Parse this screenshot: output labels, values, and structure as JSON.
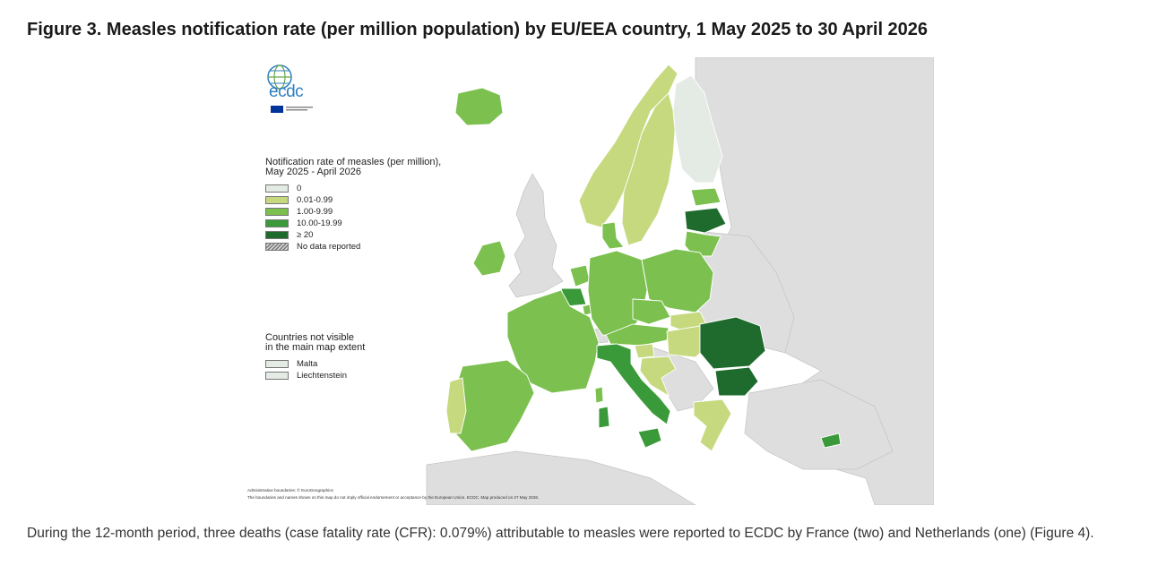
{
  "figure": {
    "title": "Figure 3. Measles notification rate (per million population) by EU/EEA country, 1 May 2025 to 30 April 2026"
  },
  "logo": {
    "text": "ecdc",
    "color": "#2f7fbf"
  },
  "colors": {
    "sea": "#ffffff",
    "non_eu": "#dedede",
    "zero": "#e4ebe4",
    "r0_01": "#c6d97e",
    "r1": "#7cc04f",
    "r10": "#3a9a3a",
    "r20": "#1f6b2e",
    "no_data": "#999999"
  },
  "legend": {
    "title_line1": "Notification rate of measles (per million),",
    "title_line2": "May 2025 - April 2026",
    "items": [
      {
        "label": "0",
        "color": "#e4ebe4"
      },
      {
        "label": "0.01-0.99",
        "color": "#c6d97e"
      },
      {
        "label": "1.00-9.99",
        "color": "#7cc04f"
      },
      {
        "label": "10.00-19.99",
        "color": "#3a9a3a"
      },
      {
        "label": "≥ 20",
        "color": "#1f6b2e"
      },
      {
        "label": "No data reported",
        "color": "#999999"
      }
    ]
  },
  "small_countries": {
    "title_line1": "Countries not visible",
    "title_line2": "in the main map extent",
    "items": [
      {
        "label": "Malta",
        "color": "#e4ebe4"
      },
      {
        "label": "Liechtenstein",
        "color": "#e4ebe4"
      }
    ]
  },
  "footnotes": {
    "line1": "Administrative boundaries: © EuroGeographics",
    "line2": "The boundaries and names shown on this map do not imply official endorsement or acceptance by the European Union. ECDC. Map produced on 27 May 2026."
  },
  "paragraph": "During the 12-month period, three deaths (case fatality rate (CFR): 0.079%) attributable to measles were reported to ECDC by France (two) and Netherlands (one) (Figure 4).",
  "map_regions": [
    {
      "name": "iceland",
      "rate_class": "1.00-9.99"
    },
    {
      "name": "ireland",
      "rate_class": "1.00-9.99"
    },
    {
      "name": "norway",
      "rate_class": "0.01-0.99"
    },
    {
      "name": "sweden",
      "rate_class": "0.01-0.99"
    },
    {
      "name": "finland",
      "rate_class": "0"
    },
    {
      "name": "estonia",
      "rate_class": "1.00-9.99"
    },
    {
      "name": "latvia",
      "rate_class": "≥ 20"
    },
    {
      "name": "lithuania",
      "rate_class": "1.00-9.99"
    },
    {
      "name": "denmark",
      "rate_class": "1.00-9.99"
    },
    {
      "name": "netherlands",
      "rate_class": "1.00-9.99"
    },
    {
      "name": "belgium",
      "rate_class": "10.00-19.99"
    },
    {
      "name": "luxembourg",
      "rate_class": "1.00-9.99"
    },
    {
      "name": "germany",
      "rate_class": "1.00-9.99"
    },
    {
      "name": "poland",
      "rate_class": "1.00-9.99"
    },
    {
      "name": "france",
      "rate_class": "1.00-9.99"
    },
    {
      "name": "czechia",
      "rate_class": "1.00-9.99"
    },
    {
      "name": "slovakia",
      "rate_class": "0.01-0.99"
    },
    {
      "name": "austria",
      "rate_class": "1.00-9.99"
    },
    {
      "name": "hungary",
      "rate_class": "0.01-0.99"
    },
    {
      "name": "slovenia",
      "rate_class": "0.01-0.99"
    },
    {
      "name": "croatia",
      "rate_class": "0.01-0.99"
    },
    {
      "name": "romania",
      "rate_class": "≥ 20"
    },
    {
      "name": "bulgaria",
      "rate_class": "≥ 20"
    },
    {
      "name": "greece",
      "rate_class": "0.01-0.99"
    },
    {
      "name": "italy",
      "rate_class": "10.00-19.99"
    },
    {
      "name": "spain",
      "rate_class": "1.00-9.99"
    },
    {
      "name": "portugal",
      "rate_class": "0.01-0.99"
    },
    {
      "name": "cyprus",
      "rate_class": "10.00-19.99"
    }
  ]
}
